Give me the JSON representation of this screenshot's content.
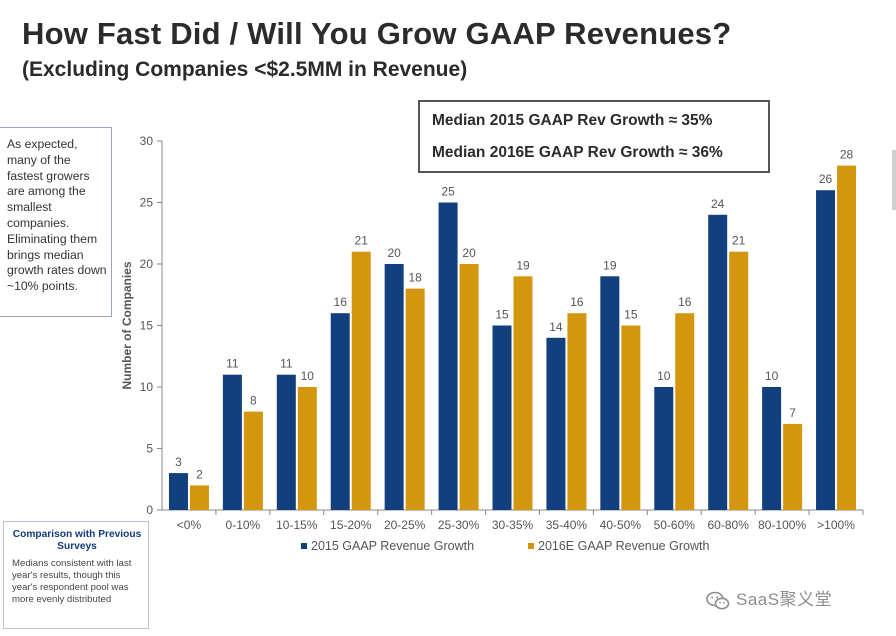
{
  "header": {
    "title": "How Fast Did / Will You Grow GAAP Revenues?",
    "subtitle": "(Excluding Companies <$2.5MM in Revenue)"
  },
  "note": {
    "text": "As expected, many of the fastest growers are among the smallest companies. Eliminating them brings median growth rates down ~10% points."
  },
  "medians": {
    "line1": "Median 2015 GAAP Rev Growth ≈ 35%",
    "line2": "Median 2016E GAAP Rev Growth ≈ 36%"
  },
  "comparison": {
    "title": "Comparison with Previous Surveys",
    "body": "Medians consistent with last year's results, though this year's respondent pool was more evenly distributed"
  },
  "watermark": {
    "text": "SaaS聚义堂",
    "icon": "wechat-icon"
  },
  "colors": {
    "series1": "#123f7d",
    "series2": "#d4960e",
    "axis": "#888888"
  },
  "chart_data": {
    "type": "bar",
    "title": "How Fast Did / Will You Grow GAAP Revenues?",
    "xlabel": "",
    "ylabel": "Number of Companies",
    "ylim": [
      0,
      30
    ],
    "yticks": [
      0,
      5,
      10,
      15,
      20,
      25,
      30
    ],
    "grid": false,
    "legend_position": "bottom",
    "categories": [
      "<0%",
      "0-10%",
      "10-15%",
      "15-20%",
      "20-25%",
      "25-30%",
      "30-35%",
      "35-40%",
      "40-50%",
      "50-60%",
      "60-80%",
      "80-100%",
      ">100%"
    ],
    "series": [
      {
        "name": "2015 GAAP Revenue Growth",
        "values": [
          3,
          11,
          11,
          16,
          20,
          25,
          15,
          14,
          19,
          10,
          24,
          10,
          26
        ]
      },
      {
        "name": "2016E GAAP Revenue Growth",
        "values": [
          2,
          8,
          10,
          21,
          18,
          20,
          19,
          16,
          15,
          16,
          21,
          7,
          28
        ]
      }
    ]
  }
}
